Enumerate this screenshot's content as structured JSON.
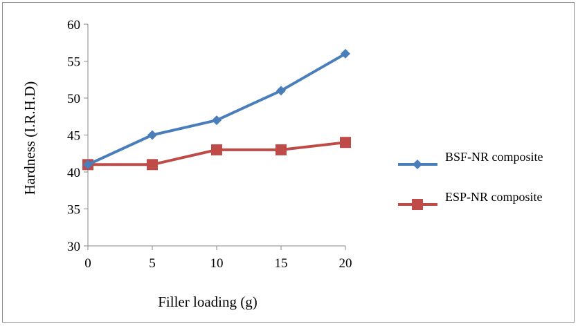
{
  "chart_data": {
    "type": "line",
    "x": [
      0,
      5,
      10,
      15,
      20
    ],
    "xlabel": "Filler loading  (g)",
    "ylabel": "Hardness (I.R.H.D)",
    "ylim": [
      30,
      60
    ],
    "yticks": [
      30,
      35,
      40,
      45,
      50,
      55,
      60
    ],
    "grid": false,
    "legend_position": "right",
    "series": [
      {
        "name": "BSF-NR composite",
        "values": [
          41,
          45,
          47,
          51,
          56
        ],
        "color": "#4a7ebb",
        "marker": "diamond"
      },
      {
        "name": "ESP-NR composite",
        "values": [
          41,
          41,
          43,
          43,
          44
        ],
        "color": "#be4b48",
        "marker": "square"
      }
    ]
  }
}
